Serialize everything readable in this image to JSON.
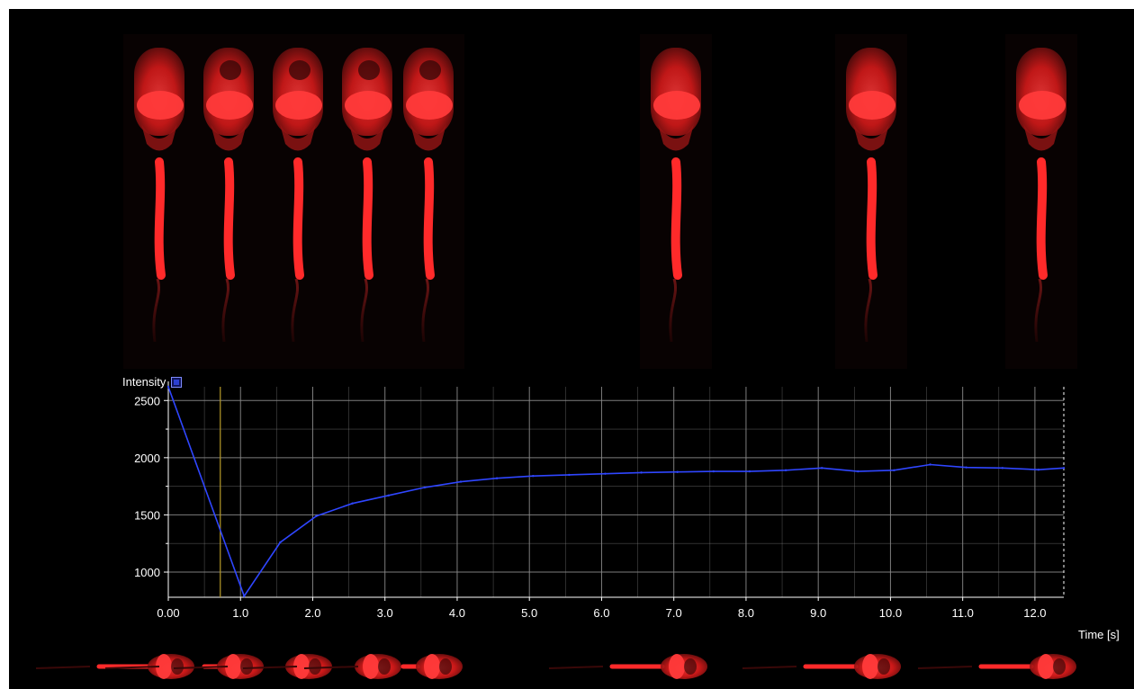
{
  "colors": {
    "background": "#000000",
    "grid": "#8a8a8a",
    "axis_text": "#ffffff",
    "series": "#2f46ff",
    "cursor": "#b79b2a",
    "cell_bright": "#ff2a2a",
    "cell_dim": "#7a1111"
  },
  "chart_data": {
    "type": "line",
    "xlabel": "Time [s]",
    "ylabel": "",
    "xlim": [
      0.0,
      12.4
    ],
    "ylim": [
      780,
      2620
    ],
    "xticks": [
      "0.00",
      "1.0",
      "2.0",
      "3.0",
      "4.0",
      "5.0",
      "6.0",
      "7.0",
      "8.0",
      "9.0",
      "10.0",
      "11.0",
      "12.0"
    ],
    "xtick_values": [
      0,
      1,
      2,
      3,
      4,
      5,
      6,
      7,
      8,
      9,
      10,
      11,
      12
    ],
    "yticks": [
      "1000",
      "1500",
      "2000",
      "2500"
    ],
    "ytick_values": [
      1000,
      1500,
      2000,
      2500
    ],
    "grid": true,
    "legend": {
      "position": "top-left",
      "entries": [
        "Intensity"
      ]
    },
    "cursor_x": 0.72,
    "series": [
      {
        "name": "Intensity",
        "x": [
          0.0,
          1.05,
          1.55,
          2.05,
          2.55,
          3.05,
          3.55,
          4.05,
          4.55,
          5.05,
          5.55,
          6.05,
          6.55,
          7.05,
          7.55,
          8.05,
          8.55,
          9.05,
          9.55,
          10.05,
          10.55,
          11.05,
          11.55,
          12.05,
          12.4
        ],
        "values": [
          2620,
          790,
          1260,
          1490,
          1600,
          1670,
          1740,
          1790,
          1820,
          1840,
          1850,
          1860,
          1870,
          1875,
          1880,
          1880,
          1890,
          1910,
          1880,
          1890,
          1940,
          1915,
          1910,
          1895,
          1910
        ]
      }
    ]
  },
  "film_strip_top": {
    "frames": 8
  },
  "film_strip_bottom": {
    "frames": 8
  }
}
